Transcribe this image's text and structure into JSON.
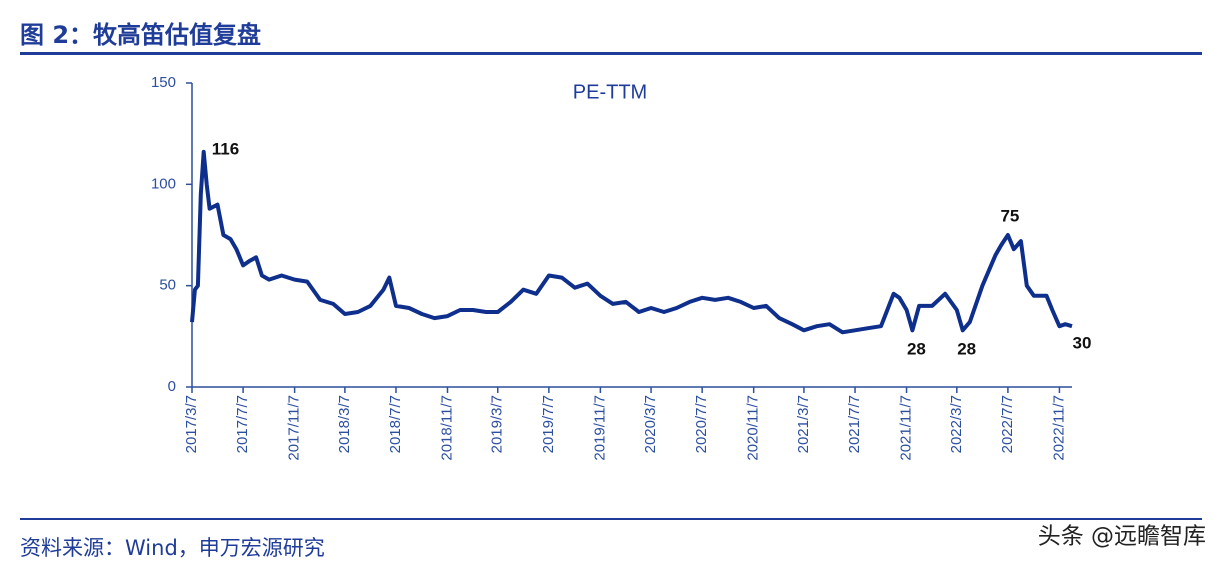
{
  "title": "图 2：牧高笛估值复盘",
  "source": "资料来源：Wind，申万宏源研究",
  "watermark": "头条 @远瞻智库",
  "chart_data": {
    "type": "line",
    "x": [
      "2017/3/7",
      "2017/3/14",
      "2017/3/21",
      "2017/3/28",
      "2017/4/4",
      "2017/4/11",
      "2017/4/18",
      "2017/5/7",
      "2017/5/21",
      "2017/6/7",
      "2017/6/21",
      "2017/7/7",
      "2017/7/21",
      "2017/8/7",
      "2017/8/21",
      "2017/9/7",
      "2017/10/7",
      "2017/11/7",
      "2017/12/7",
      "2018/1/7",
      "2018/2/7",
      "2018/3/7",
      "2018/4/7",
      "2018/5/7",
      "2018/6/7",
      "2018/6/21",
      "2018/7/7",
      "2018/8/7",
      "2018/9/7",
      "2018/10/7",
      "2018/11/7",
      "2018/12/7",
      "2019/1/7",
      "2019/2/7",
      "2019/3/7",
      "2019/4/7",
      "2019/5/7",
      "2019/6/7",
      "2019/7/7",
      "2019/8/7",
      "2019/9/7",
      "2019/10/7",
      "2019/11/7",
      "2019/12/7",
      "2020/1/7",
      "2020/2/7",
      "2020/3/7",
      "2020/4/7",
      "2020/5/7",
      "2020/6/7",
      "2020/7/7",
      "2020/8/7",
      "2020/9/7",
      "2020/10/7",
      "2020/11/7",
      "2020/12/7",
      "2021/1/7",
      "2021/2/7",
      "2021/3/7",
      "2021/4/7",
      "2021/5/7",
      "2021/6/7",
      "2021/7/7",
      "2021/8/7",
      "2021/9/7",
      "2021/10/7",
      "2021/10/21",
      "2021/11/7",
      "2021/11/21",
      "2021/12/7",
      "2022/1/7",
      "2022/2/7",
      "2022/3/7",
      "2022/3/21",
      "2022/4/7",
      "2022/5/7",
      "2022/6/7",
      "2022/6/21",
      "2022/7/7",
      "2022/7/21",
      "2022/8/7",
      "2022/8/21",
      "2022/9/7",
      "2022/10/7",
      "2022/10/21",
      "2022/11/7",
      "2022/11/21",
      "2022/12/7"
    ],
    "series": [
      {
        "name": "PE-TTM",
        "color": "#0e2f8c",
        "values": [
          32,
          48,
          50,
          95,
          116,
          100,
          88,
          90,
          75,
          73,
          68,
          60,
          62,
          64,
          55,
          53,
          55,
          53,
          52,
          43,
          41,
          36,
          37,
          40,
          48,
          54,
          40,
          39,
          36,
          34,
          35,
          38,
          38,
          37,
          37,
          42,
          48,
          46,
          55,
          54,
          49,
          51,
          45,
          41,
          42,
          37,
          39,
          37,
          39,
          42,
          44,
          43,
          44,
          42,
          39,
          40,
          34,
          31,
          28,
          30,
          31,
          27,
          28,
          29,
          30,
          46,
          44,
          38,
          28,
          40,
          40,
          46,
          38,
          28,
          32,
          50,
          65,
          70,
          75,
          68,
          72,
          50,
          45,
          45,
          38,
          30,
          31,
          30
        ]
      }
    ],
    "annotations": [
      {
        "x": "2017/4/4",
        "value": 116
      },
      {
        "x": "2021/11/21",
        "value": 28
      },
      {
        "x": "2022/3/21",
        "value": 28
      },
      {
        "x": "2022/7/7",
        "value": 75
      },
      {
        "x": "2022/12/7",
        "value": 30
      }
    ],
    "xlim": [
      "2017/3/7",
      "2022/12/7"
    ],
    "xticks": [
      "2017/3/7",
      "2017/7/7",
      "2017/11/7",
      "2018/3/7",
      "2018/7/7",
      "2018/11/7",
      "2019/3/7",
      "2019/7/7",
      "2019/11/7",
      "2020/3/7",
      "2020/7/7",
      "2020/11/7",
      "2021/3/7",
      "2021/7/7",
      "2021/11/7",
      "2022/3/7",
      "2022/7/7",
      "2022/11/7"
    ],
    "ylim": [
      0,
      150
    ],
    "yticks": [
      0,
      50,
      100,
      150
    ]
  }
}
